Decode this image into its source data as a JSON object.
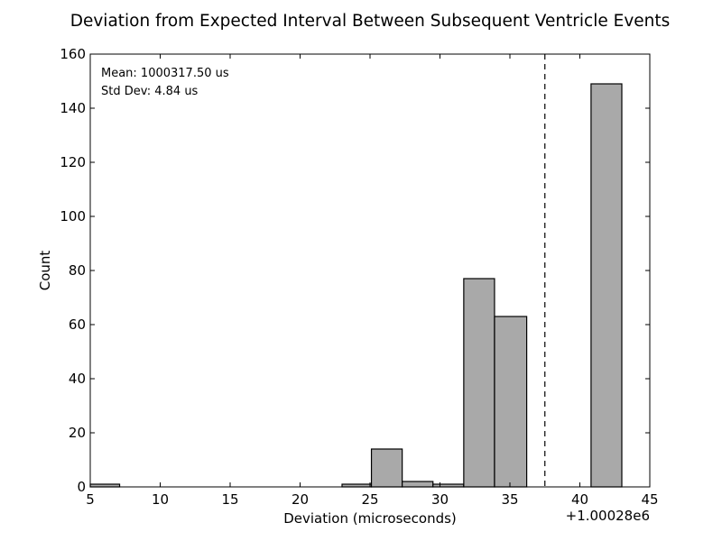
{
  "chart_data": {
    "type": "bar",
    "title": "Deviation from Expected Interval Between Subsequent Ventricle Events",
    "xlabel": "Deviation (microseconds)",
    "ylabel": "Count",
    "x_offset_label": "+1.00028e6",
    "xlim": [
      5,
      45
    ],
    "ylim": [
      0,
      160
    ],
    "xticks": [
      5,
      10,
      15,
      20,
      25,
      30,
      35,
      40,
      45
    ],
    "yticks": [
      0,
      20,
      40,
      60,
      80,
      100,
      120,
      140,
      160
    ],
    "bins": [
      {
        "x0": 4.85,
        "x1": 7.1,
        "count": 1
      },
      {
        "x0": 23.0,
        "x1": 25.1,
        "count": 1
      },
      {
        "x0": 25.1,
        "x1": 27.3,
        "count": 14
      },
      {
        "x0": 27.3,
        "x1": 29.5,
        "count": 2
      },
      {
        "x0": 29.5,
        "x1": 31.7,
        "count": 1
      },
      {
        "x0": 31.7,
        "x1": 33.9,
        "count": 77
      },
      {
        "x0": 33.9,
        "x1": 36.2,
        "count": 63
      },
      {
        "x0": 40.8,
        "x1": 43.0,
        "count": 149
      }
    ],
    "mean_line_x": 37.5,
    "annotations": [
      "Mean: 1000317.50 us",
      "Std Dev: 4.84 us"
    ],
    "bar_color": "#a9a9a9",
    "grid": false
  }
}
